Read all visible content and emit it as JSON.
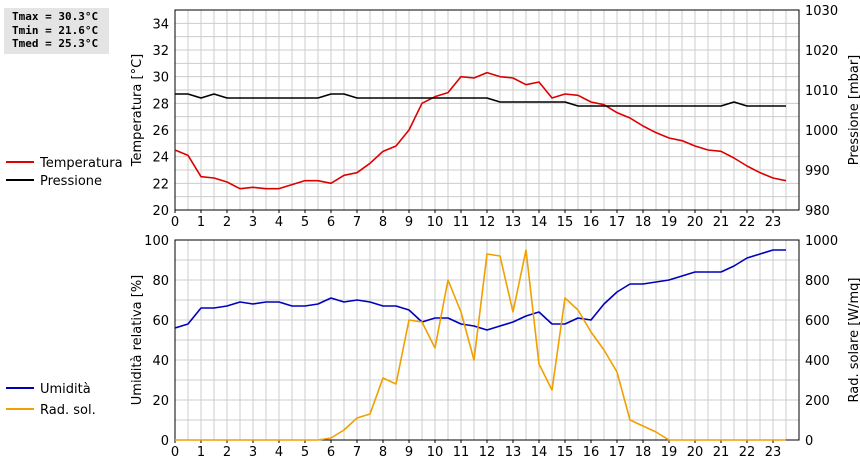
{
  "stats": {
    "tmax": "Tmax = 30.3°C",
    "tmin": "Tmin = 21.6°C",
    "tmed": "Tmed = 25.3°C"
  },
  "colors": {
    "temperature": "#dd0000",
    "pressure": "#000000",
    "humidity": "#0000bb",
    "radiation": "#f0a000",
    "grid": "#cccccc"
  },
  "chart_data": [
    {
      "type": "line",
      "ylabel": "Temperatura [°C]",
      "y2label": "Pressione [mbar]",
      "xlim": [
        0,
        24
      ],
      "ylim": [
        20,
        35
      ],
      "y2lim": [
        980,
        1030
      ],
      "grid": true,
      "legend_position": "left",
      "x_ticks": [
        "0",
        "1",
        "2",
        "3",
        "4",
        "5",
        "6",
        "7",
        "8",
        "9",
        "10",
        "11",
        "12",
        "13",
        "14",
        "15",
        "16",
        "17",
        "18",
        "19",
        "20",
        "21",
        "22",
        "23"
      ],
      "y_ticks": [
        "20",
        "22",
        "24",
        "26",
        "28",
        "30",
        "32",
        "34"
      ],
      "y2_ticks": [
        "980",
        "990",
        "1000",
        "1010",
        "1020",
        "1030"
      ],
      "series": [
        {
          "name": "Temperatura",
          "axis": "left",
          "x": [
            0,
            0.5,
            1,
            1.5,
            2,
            2.5,
            3,
            3.5,
            4,
            4.5,
            5,
            5.5,
            6,
            6.5,
            7,
            7.5,
            8,
            8.5,
            9,
            9.5,
            10,
            10.5,
            11,
            11.5,
            12,
            12.5,
            13,
            13.5,
            14,
            14.5,
            15,
            15.5,
            16,
            16.5,
            17,
            17.5,
            18,
            18.5,
            19,
            19.5,
            20,
            20.5,
            21,
            21.5,
            22,
            22.5,
            23,
            23.5
          ],
          "values": [
            24.5,
            24.1,
            22.5,
            22.4,
            22.1,
            21.6,
            21.7,
            21.6,
            21.6,
            21.9,
            22.2,
            22.2,
            22.0,
            22.6,
            22.8,
            23.5,
            24.4,
            24.8,
            26.0,
            28.0,
            28.5,
            28.8,
            30.0,
            29.9,
            30.3,
            30.0,
            29.9,
            29.4,
            29.6,
            28.4,
            28.7,
            28.6,
            28.1,
            27.9,
            27.3,
            26.9,
            26.3,
            25.8,
            25.4,
            25.2,
            24.8,
            24.5,
            24.4,
            23.9,
            23.3,
            22.8,
            22.4,
            22.2
          ]
        },
        {
          "name": "Pressione",
          "axis": "right",
          "x": [
            0,
            0.5,
            1,
            1.5,
            2,
            2.5,
            3,
            3.5,
            4,
            4.5,
            5,
            5.5,
            6,
            6.5,
            7,
            7.5,
            8,
            8.5,
            9,
            9.5,
            10,
            10.5,
            11,
            11.5,
            12,
            12.5,
            13,
            13.5,
            14,
            14.5,
            15,
            15.5,
            16,
            16.5,
            17,
            17.5,
            18,
            18.5,
            19,
            19.5,
            20,
            20.5,
            21,
            21.5,
            22,
            22.5,
            23,
            23.5
          ],
          "values": [
            1009,
            1009,
            1008,
            1009,
            1008,
            1008,
            1008,
            1008,
            1008,
            1008,
            1008,
            1008,
            1009,
            1009,
            1008,
            1008,
            1008,
            1008,
            1008,
            1008,
            1008,
            1008,
            1008,
            1008,
            1008,
            1007,
            1007,
            1007,
            1007,
            1007,
            1007,
            1006,
            1006,
            1006,
            1006,
            1006,
            1006,
            1006,
            1006,
            1006,
            1006,
            1006,
            1006,
            1007,
            1006,
            1006,
            1006,
            1006
          ]
        }
      ]
    },
    {
      "type": "line",
      "ylabel": "Umidità relativa [%]",
      "y2label": "Rad. solare [W/mq]",
      "xlim": [
        0,
        24
      ],
      "ylim": [
        0,
        100
      ],
      "y2lim": [
        0,
        1000
      ],
      "grid": true,
      "legend_position": "left",
      "x_ticks": [
        "0",
        "1",
        "2",
        "3",
        "4",
        "5",
        "6",
        "7",
        "8",
        "9",
        "10",
        "11",
        "12",
        "13",
        "14",
        "15",
        "16",
        "17",
        "18",
        "19",
        "20",
        "21",
        "22",
        "23"
      ],
      "y_ticks": [
        "0",
        "20",
        "40",
        "60",
        "80",
        "100"
      ],
      "y2_ticks": [
        "0",
        "200",
        "400",
        "600",
        "800",
        "1000"
      ],
      "series": [
        {
          "name": "Umidità",
          "axis": "left",
          "x": [
            0,
            0.5,
            1,
            1.5,
            2,
            2.5,
            3,
            3.5,
            4,
            4.5,
            5,
            5.5,
            6,
            6.5,
            7,
            7.5,
            8,
            8.5,
            9,
            9.5,
            10,
            10.5,
            11,
            11.5,
            12,
            12.5,
            13,
            13.5,
            14,
            14.5,
            15,
            15.5,
            16,
            16.5,
            17,
            17.5,
            18,
            18.5,
            19,
            19.5,
            20,
            20.5,
            21,
            21.5,
            22,
            22.5,
            23,
            23.5
          ],
          "values": [
            56,
            58,
            66,
            66,
            67,
            69,
            68,
            69,
            69,
            67,
            67,
            68,
            71,
            69,
            70,
            69,
            67,
            67,
            65,
            59,
            61,
            61,
            58,
            57,
            55,
            57,
            59,
            62,
            64,
            58,
            58,
            61,
            60,
            68,
            74,
            78,
            78,
            79,
            80,
            82,
            84,
            84,
            84,
            87,
            91,
            93,
            95,
            95
          ]
        },
        {
          "name": "Rad. sol.",
          "axis": "right",
          "x": [
            0,
            0.5,
            1,
            1.5,
            2,
            2.5,
            3,
            3.5,
            4,
            4.5,
            5,
            5.5,
            6,
            6.5,
            7,
            7.5,
            8,
            8.5,
            9,
            9.5,
            10,
            10.5,
            11,
            11.5,
            12,
            12.5,
            13,
            13.5,
            14,
            14.5,
            15,
            15.5,
            16,
            16.5,
            17,
            17.5,
            18,
            18.5,
            19,
            19.5,
            20,
            20.5,
            21,
            21.5,
            22,
            22.5,
            23,
            23.5
          ],
          "values": [
            0,
            0,
            0,
            0,
            0,
            0,
            0,
            0,
            0,
            0,
            0,
            0,
            10,
            50,
            110,
            130,
            310,
            280,
            600,
            590,
            460,
            800,
            640,
            400,
            930,
            920,
            640,
            950,
            380,
            250,
            710,
            650,
            540,
            450,
            340,
            100,
            70,
            40,
            0,
            0,
            0,
            0,
            0,
            0,
            0,
            0,
            0,
            0
          ]
        }
      ]
    }
  ]
}
